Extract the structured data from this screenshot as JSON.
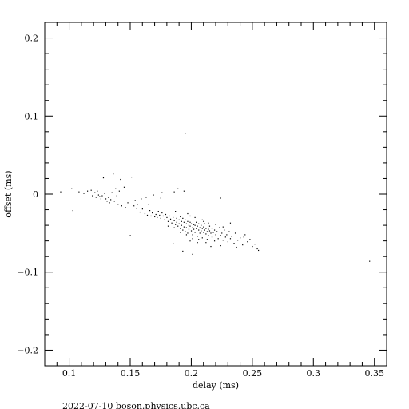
{
  "chart_data": {
    "type": "scatter",
    "xlabel": "delay (ms)",
    "ylabel": "offset (ms)",
    "xlim": [
      0.08,
      0.36
    ],
    "ylim": [
      -0.22,
      0.22
    ],
    "x_ticks": [
      0.1,
      0.15,
      0.2,
      0.25,
      0.3,
      0.35
    ],
    "x_tick_labels": [
      "0.1",
      "0.15",
      "0.2",
      "0.25",
      "0.3",
      "0.35"
    ],
    "y_ticks": [
      -0.2,
      -0.1,
      0,
      0.1,
      0.2
    ],
    "y_tick_labels": [
      "−0.2",
      "−0.1",
      "0",
      "0.1",
      "0.2"
    ],
    "grid": false,
    "footer": "2022-07-10  boson.physics.ubc.ca",
    "series": [
      {
        "points": [
          [
            0.093,
            0.003
          ],
          [
            0.102,
            0.007
          ],
          [
            0.103,
            -0.021
          ],
          [
            0.108,
            0.003
          ],
          [
            0.112,
            0.001
          ],
          [
            0.115,
            0.004
          ],
          [
            0.119,
            -0.002
          ],
          [
            0.121,
            0.002
          ],
          [
            0.122,
            -0.004
          ],
          [
            0.123,
            0.004
          ],
          [
            0.124,
            -0.001
          ],
          [
            0.125,
            -0.003
          ],
          [
            0.126,
            -0.006
          ],
          [
            0.127,
            -0.002
          ],
          [
            0.128,
            0.021
          ],
          [
            0.129,
            0.001
          ],
          [
            0.13,
            -0.006
          ],
          [
            0.131,
            -0.009
          ],
          [
            0.132,
            -0.004
          ],
          [
            0.133,
            -0.011
          ],
          [
            0.134,
            -0.007
          ],
          [
            0.135,
            0.002
          ],
          [
            0.136,
            0.026
          ],
          [
            0.137,
            -0.009
          ],
          [
            0.138,
            0.007
          ],
          [
            0.14,
            -0.013
          ],
          [
            0.141,
            0.004
          ],
          [
            0.143,
            -0.015
          ],
          [
            0.145,
            0.009
          ],
          [
            0.146,
            -0.017
          ],
          [
            0.148,
            -0.011
          ],
          [
            0.15,
            -0.053
          ],
          [
            0.151,
            0.022
          ],
          [
            0.153,
            -0.015
          ],
          [
            0.155,
            -0.018
          ],
          [
            0.156,
            -0.013
          ],
          [
            0.158,
            -0.023
          ],
          [
            0.16,
            -0.019
          ],
          [
            0.162,
            -0.025
          ],
          [
            0.163,
            -0.004
          ],
          [
            0.164,
            -0.027
          ],
          [
            0.166,
            -0.021
          ],
          [
            0.167,
            -0.028
          ],
          [
            0.168,
            -0.024
          ],
          [
            0.17,
            -0.029
          ],
          [
            0.171,
            -0.026
          ],
          [
            0.172,
            -0.03
          ],
          [
            0.173,
            -0.022
          ],
          [
            0.174,
            -0.027
          ],
          [
            0.175,
            -0.031
          ],
          [
            0.176,
            -0.024
          ],
          [
            0.177,
            -0.028
          ],
          [
            0.178,
            -0.033
          ],
          [
            0.179,
            -0.026
          ],
          [
            0.18,
            -0.03
          ],
          [
            0.181,
            -0.035
          ],
          [
            0.182,
            -0.028
          ],
          [
            0.183,
            -0.032
          ],
          [
            0.184,
            -0.037
          ],
          [
            0.185,
            -0.03
          ],
          [
            0.186,
            -0.034
          ],
          [
            0.187,
            -0.039
          ],
          [
            0.188,
            -0.031
          ],
          [
            0.188,
            -0.036
          ],
          [
            0.189,
            -0.041
          ],
          [
            0.19,
            -0.033
          ],
          [
            0.19,
            -0.038
          ],
          [
            0.191,
            -0.029
          ],
          [
            0.191,
            -0.044
          ],
          [
            0.192,
            -0.035
          ],
          [
            0.192,
            -0.04
          ],
          [
            0.193,
            -0.031
          ],
          [
            0.193,
            -0.046
          ],
          [
            0.194,
            -0.036
          ],
          [
            0.194,
            -0.042
          ],
          [
            0.195,
            -0.033
          ],
          [
            0.195,
            -0.048
          ],
          [
            0.196,
            -0.038
          ],
          [
            0.196,
            -0.043
          ],
          [
            0.197,
            -0.035
          ],
          [
            0.197,
            -0.05
          ],
          [
            0.198,
            -0.04
          ],
          [
            0.198,
            -0.045
          ],
          [
            0.199,
            -0.036
          ],
          [
            0.199,
            -0.041
          ],
          [
            0.2,
            -0.047
          ],
          [
            0.2,
            -0.038
          ],
          [
            0.201,
            -0.043
          ],
          [
            0.201,
            -0.052
          ],
          [
            0.202,
            -0.039
          ],
          [
            0.202,
            -0.045
          ],
          [
            0.203,
            -0.04
          ],
          [
            0.203,
            -0.049
          ],
          [
            0.204,
            -0.036
          ],
          [
            0.204,
            -0.044
          ],
          [
            0.205,
            -0.041
          ],
          [
            0.205,
            -0.054
          ],
          [
            0.206,
            -0.038
          ],
          [
            0.206,
            -0.046
          ],
          [
            0.207,
            -0.043
          ],
          [
            0.207,
            -0.05
          ],
          [
            0.208,
            -0.04
          ],
          [
            0.208,
            -0.047
          ],
          [
            0.209,
            -0.044
          ],
          [
            0.209,
            -0.056
          ],
          [
            0.21,
            -0.042
          ],
          [
            0.21,
            -0.049
          ],
          [
            0.211,
            -0.046
          ],
          [
            0.211,
            -0.038
          ],
          [
            0.212,
            -0.051
          ],
          [
            0.212,
            -0.044
          ],
          [
            0.213,
            -0.048
          ],
          [
            0.213,
            -0.058
          ],
          [
            0.214,
            -0.045
          ],
          [
            0.214,
            -0.053
          ],
          [
            0.215,
            -0.047
          ],
          [
            0.215,
            -0.041
          ],
          [
            0.216,
            -0.05
          ],
          [
            0.217,
            -0.055
          ],
          [
            0.217,
            -0.044
          ],
          [
            0.218,
            -0.049
          ],
          [
            0.219,
            -0.06
          ],
          [
            0.219,
            -0.046
          ],
          [
            0.22,
            -0.052
          ],
          [
            0.221,
            -0.048
          ],
          [
            0.222,
            -0.057
          ],
          [
            0.223,
            -0.043
          ],
          [
            0.224,
            -0.053
          ],
          [
            0.225,
            -0.05
          ],
          [
            0.226,
            -0.059
          ],
          [
            0.227,
            -0.046
          ],
          [
            0.228,
            -0.055
          ],
          [
            0.229,
            -0.052
          ],
          [
            0.23,
            -0.061
          ],
          [
            0.231,
            -0.048
          ],
          [
            0.232,
            -0.057
          ],
          [
            0.233,
            -0.054
          ],
          [
            0.235,
            -0.063
          ],
          [
            0.236,
            -0.05
          ],
          [
            0.238,
            -0.059
          ],
          [
            0.24,
            -0.056
          ],
          [
            0.242,
            -0.065
          ],
          [
            0.244,
            -0.052
          ],
          [
            0.246,
            -0.061
          ],
          [
            0.248,
            -0.058
          ],
          [
            0.25,
            -0.067
          ],
          [
            0.252,
            -0.064
          ],
          [
            0.254,
            -0.07
          ],
          [
            0.255,
            -0.072
          ],
          [
            0.224,
            -0.005
          ],
          [
            0.21,
            -0.035
          ],
          [
            0.189,
            0.007
          ],
          [
            0.195,
            0.078
          ],
          [
            0.185,
            -0.063
          ],
          [
            0.193,
            -0.073
          ],
          [
            0.201,
            -0.077
          ],
          [
            0.205,
            -0.062
          ],
          [
            0.232,
            -0.037
          ],
          [
            0.216,
            -0.067
          ],
          [
            0.346,
            -0.086
          ],
          [
            0.176,
            0.002
          ],
          [
            0.186,
            0.003
          ],
          [
            0.194,
            0.004
          ],
          [
            0.175,
            -0.005
          ],
          [
            0.169,
            -0.001
          ],
          [
            0.159,
            -0.006
          ],
          [
            0.142,
            0.019
          ],
          [
            0.118,
            0.005
          ],
          [
            0.139,
            -0.002
          ],
          [
            0.154,
            -0.008
          ],
          [
            0.165,
            -0.013
          ],
          [
            0.197,
            -0.025
          ],
          [
            0.203,
            -0.03
          ],
          [
            0.209,
            -0.033
          ],
          [
            0.199,
            -0.028
          ],
          [
            0.187,
            -0.022
          ],
          [
            0.214,
            -0.037
          ],
          [
            0.22,
            -0.039
          ],
          [
            0.226,
            -0.042
          ],
          [
            0.206,
            -0.058
          ],
          [
            0.199,
            -0.06
          ],
          [
            0.212,
            -0.062
          ],
          [
            0.224,
            -0.066
          ],
          [
            0.237,
            -0.068
          ],
          [
            0.243,
            -0.055
          ],
          [
            0.196,
            -0.052
          ],
          [
            0.201,
            -0.057
          ],
          [
            0.191,
            -0.049
          ],
          [
            0.186,
            -0.043
          ],
          [
            0.181,
            -0.041
          ]
        ]
      }
    ]
  }
}
